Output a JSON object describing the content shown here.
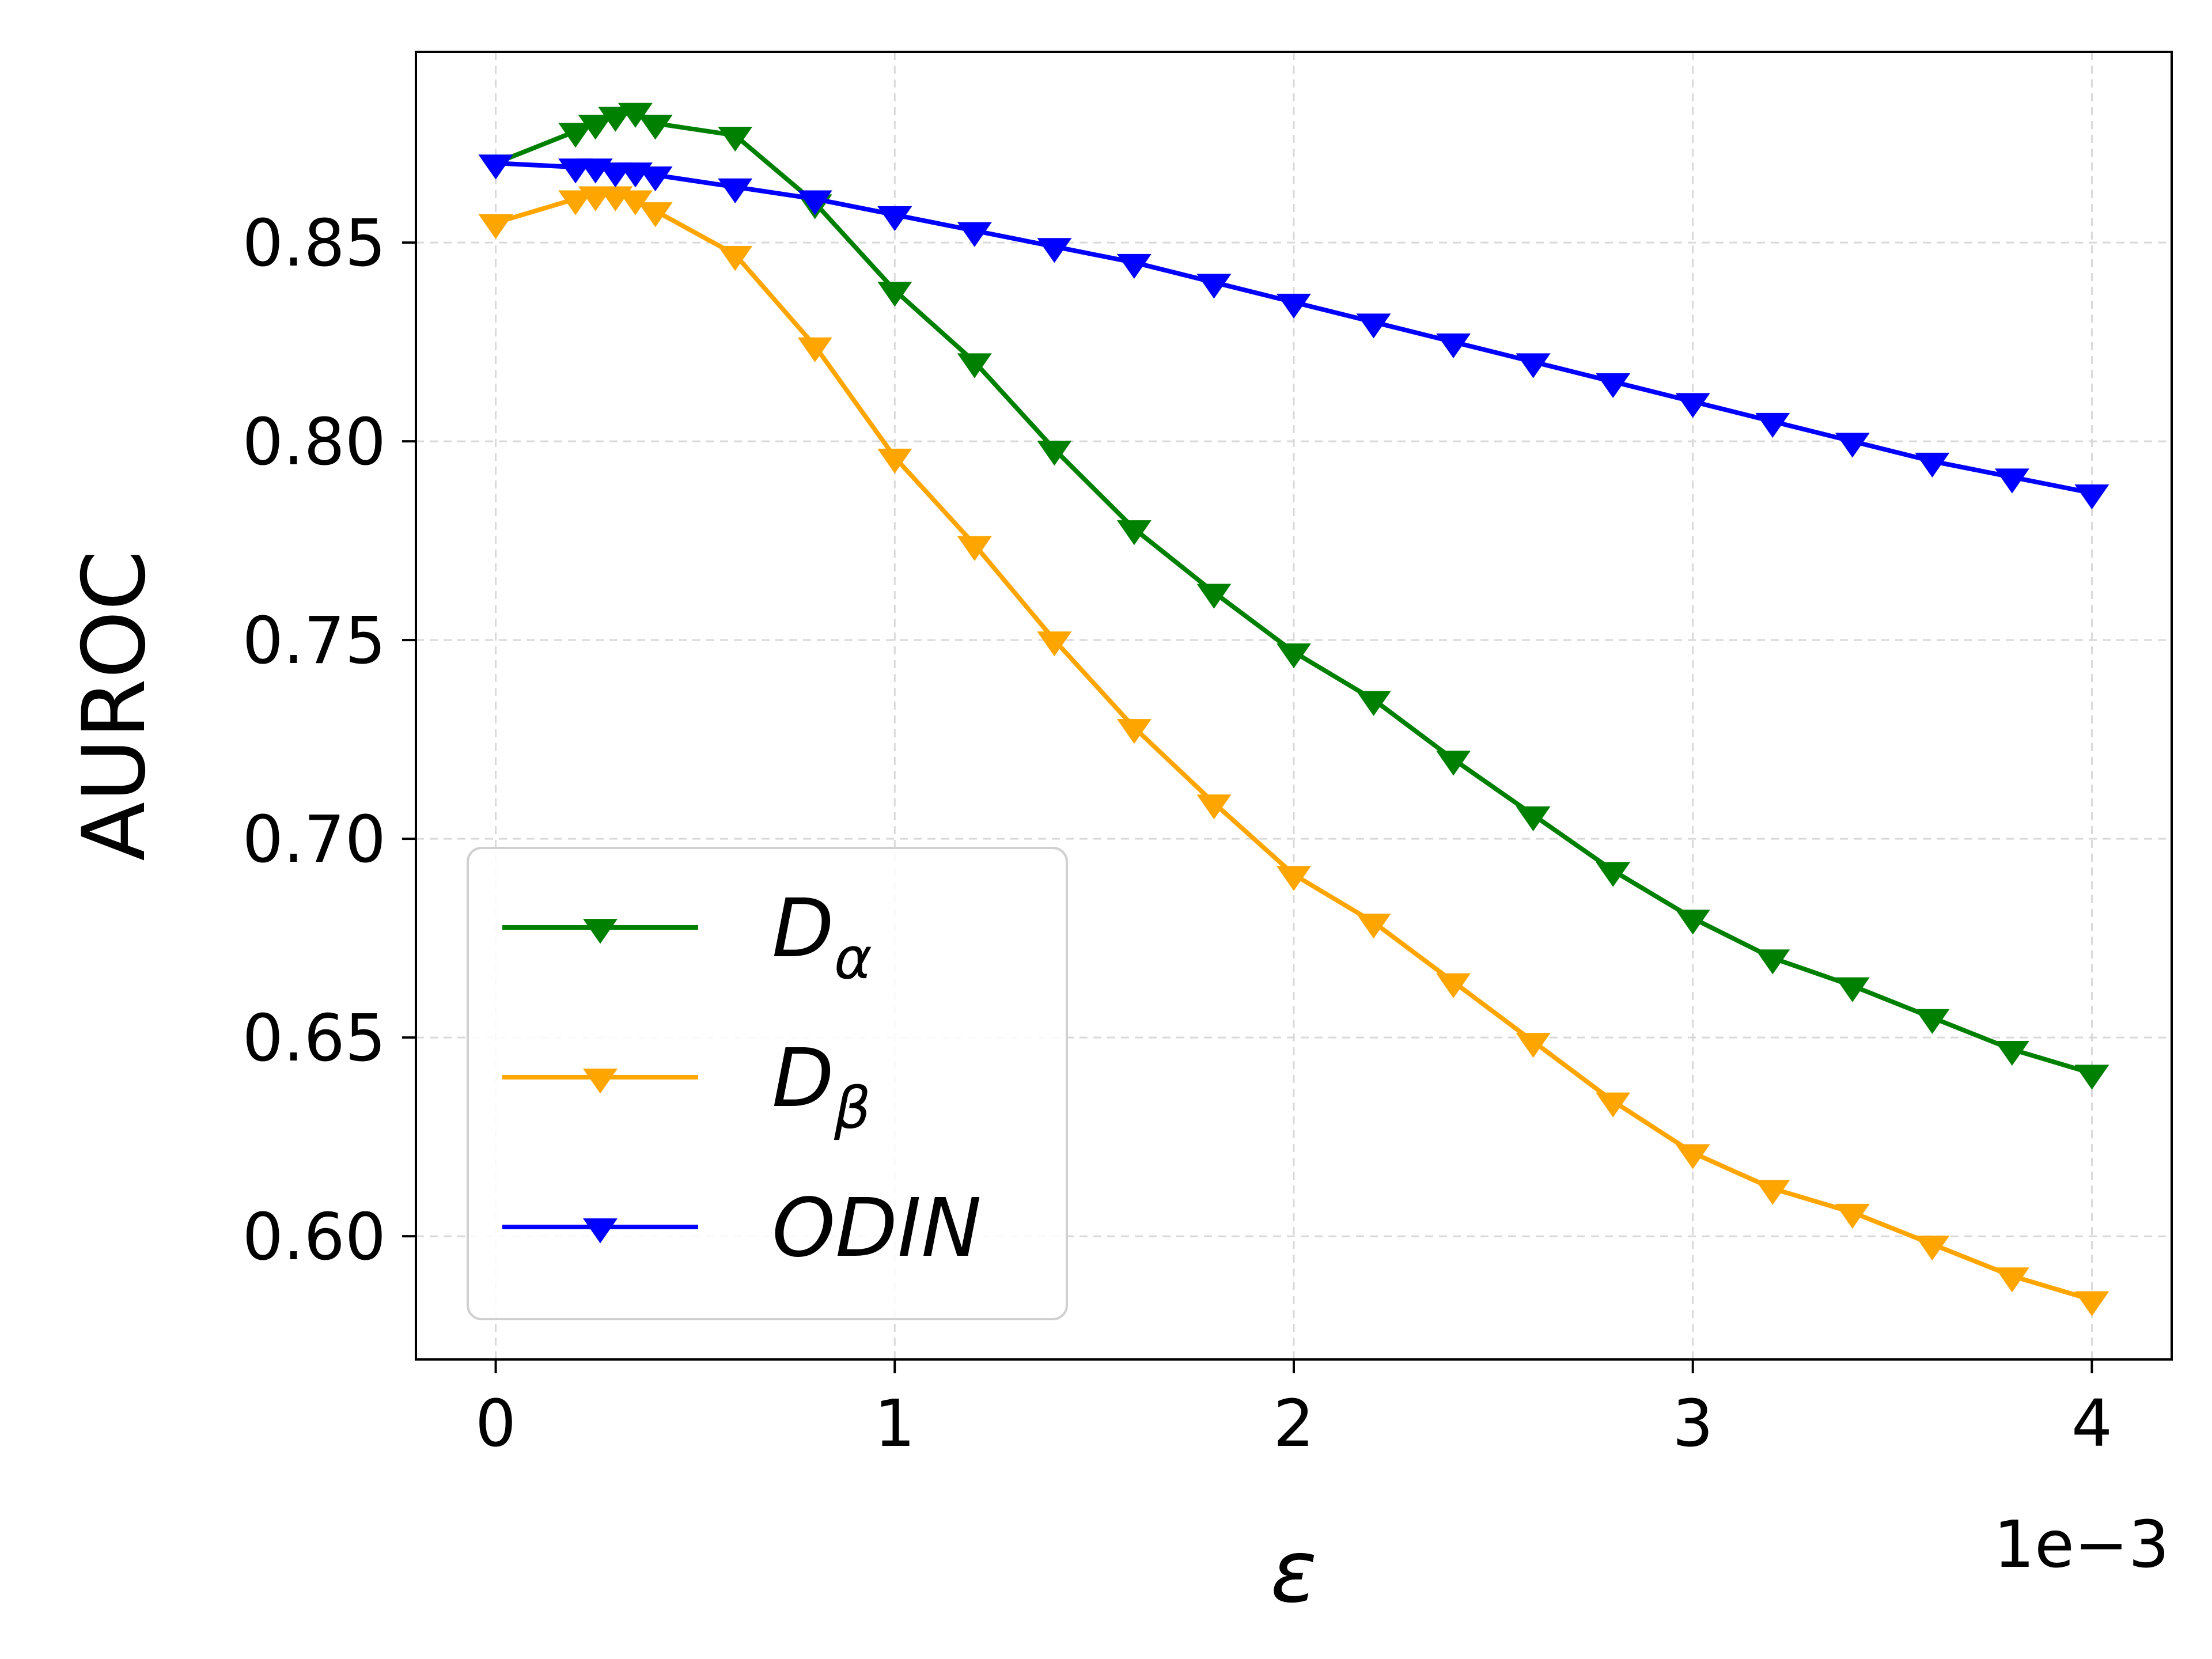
{
  "chart_data": {
    "type": "line",
    "xlabel": "ε",
    "ylabel": "AUROC",
    "x_offset_label": "1e−3",
    "xlim": [
      -0.2,
      4.2
    ],
    "ylim": [
      0.569,
      0.898
    ],
    "xticks": [
      0,
      1,
      2,
      3,
      4
    ],
    "xtick_labels": [
      "0",
      "1",
      "2",
      "3",
      "4"
    ],
    "yticks": [
      0.6,
      0.65,
      0.7,
      0.75,
      0.8,
      0.85
    ],
    "ytick_labels": [
      "0.60",
      "0.65",
      "0.70",
      "0.75",
      "0.80",
      "0.85"
    ],
    "grid": true,
    "legend_position": "lower-left",
    "marker": "triangle-down",
    "series": [
      {
        "name": "Dα",
        "legend_main": "D",
        "legend_sub": "α",
        "color": "#008000",
        "x": [
          0,
          0.2,
          0.25,
          0.3,
          0.35,
          0.4,
          0.6,
          0.8,
          1.0,
          1.2,
          1.4,
          1.6,
          1.8,
          2.0,
          2.2,
          2.4,
          2.6,
          2.8,
          3.0,
          3.2,
          3.4,
          3.6,
          3.8,
          4.0
        ],
        "y": [
          0.87,
          0.878,
          0.88,
          0.882,
          0.883,
          0.88,
          0.877,
          0.86,
          0.838,
          0.82,
          0.798,
          0.778,
          0.762,
          0.747,
          0.735,
          0.72,
          0.706,
          0.692,
          0.68,
          0.67,
          0.663,
          0.655,
          0.647,
          0.641
        ]
      },
      {
        "name": "Dβ",
        "legend_main": "D",
        "legend_sub": "β",
        "color": "#FFA500",
        "x": [
          0,
          0.2,
          0.25,
          0.3,
          0.35,
          0.4,
          0.6,
          0.8,
          1.0,
          1.2,
          1.4,
          1.6,
          1.8,
          2.0,
          2.2,
          2.4,
          2.6,
          2.8,
          3.0,
          3.2,
          3.4,
          3.6,
          3.8,
          4.0
        ],
        "y": [
          0.855,
          0.861,
          0.862,
          0.862,
          0.861,
          0.858,
          0.847,
          0.824,
          0.796,
          0.774,
          0.75,
          0.728,
          0.709,
          0.691,
          0.679,
          0.664,
          0.649,
          0.634,
          0.621,
          0.612,
          0.606,
          0.598,
          0.59,
          0.584
        ]
      },
      {
        "name": "ODIN",
        "legend_main": "ODIN",
        "legend_sub": "",
        "color": "#0000FF",
        "x": [
          0,
          0.2,
          0.25,
          0.3,
          0.35,
          0.4,
          0.6,
          0.8,
          1.0,
          1.2,
          1.4,
          1.6,
          1.8,
          2.0,
          2.2,
          2.4,
          2.6,
          2.8,
          3.0,
          3.2,
          3.4,
          3.6,
          3.8,
          4.0
        ],
        "y": [
          0.87,
          0.869,
          0.869,
          0.868,
          0.868,
          0.867,
          0.864,
          0.861,
          0.857,
          0.853,
          0.849,
          0.845,
          0.84,
          0.835,
          0.83,
          0.825,
          0.82,
          0.815,
          0.81,
          0.805,
          0.8,
          0.795,
          0.791,
          0.787
        ]
      }
    ]
  }
}
